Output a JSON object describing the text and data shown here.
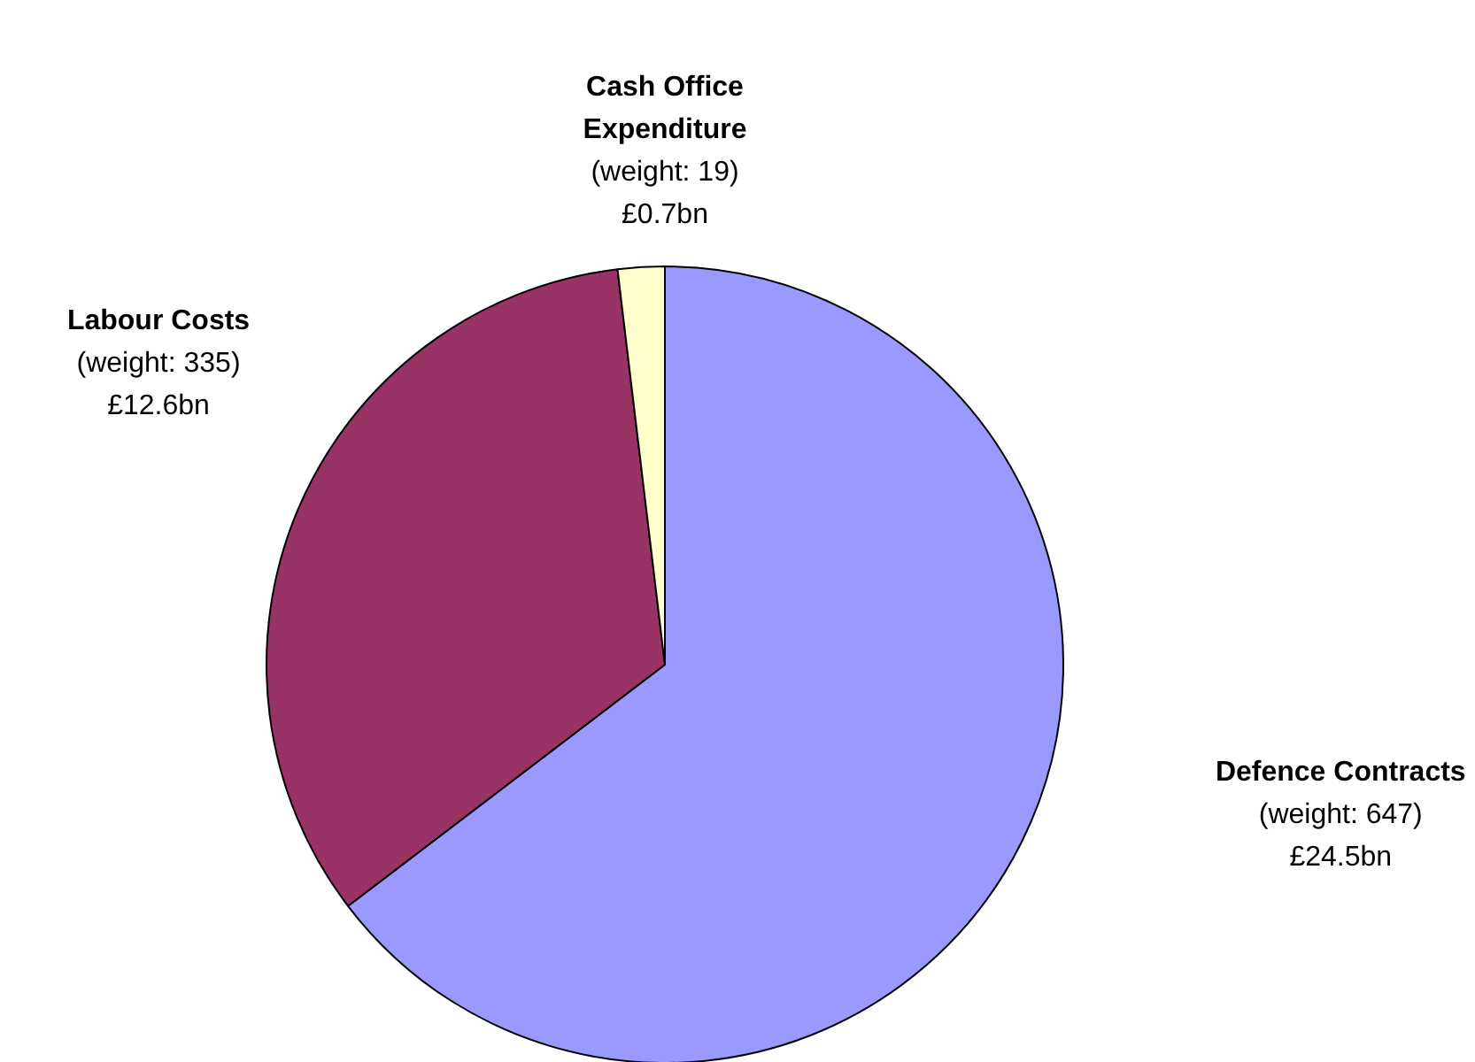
{
  "chart_data": {
    "type": "pie",
    "categories": [
      "Defence Contracts",
      "Labour Costs",
      "Cash Office Expenditure"
    ],
    "values": [
      647,
      335,
      19
    ],
    "value_labels": [
      "(weight: 647)\n£24.5bn",
      "(weight: 335)\n£12.6bn",
      "(weight: 19)\n£0.7bn"
    ],
    "colors": [
      "#9999ff",
      "#993366",
      "#ffffcc"
    ]
  }
}
